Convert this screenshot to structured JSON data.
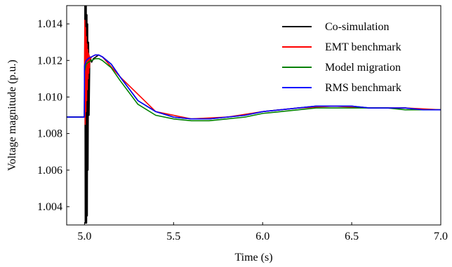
{
  "chart_data": {
    "type": "line",
    "xlabel": "Time (s)",
    "ylabel": "Voltage magnitude (p.u.)",
    "xlim": [
      4.9,
      7.0
    ],
    "ylim": [
      1.003,
      1.015
    ],
    "xticks": [
      "5.0",
      "5.5",
      "6.0",
      "6.5",
      "7.0"
    ],
    "yticks": [
      "1.004",
      "1.006",
      "1.008",
      "1.010",
      "1.012",
      "1.014"
    ],
    "grid": false,
    "legend_position": "top-right",
    "series": [
      {
        "name": "Co-simulation",
        "color": "#000000",
        "x": [
          4.9,
          4.99,
          5.0,
          5.002,
          5.004,
          5.006,
          5.008,
          5.01,
          5.012,
          5.014,
          5.016,
          5.018,
          5.02,
          5.023,
          5.026,
          5.03,
          5.04,
          5.05,
          5.08,
          5.1,
          5.15,
          5.2,
          5.3,
          5.4,
          5.5,
          5.6,
          5.7,
          5.8,
          5.9,
          6.0,
          6.1,
          6.2,
          6.3,
          6.4,
          6.5,
          6.6,
          6.7,
          6.8,
          6.9,
          7.0
        ],
        "values": [
          1.0089,
          1.0089,
          1.0089,
          1.015,
          1.0031,
          1.015,
          1.0031,
          1.015,
          1.0031,
          1.0145,
          1.0035,
          1.014,
          1.006,
          1.013,
          1.009,
          1.0122,
          1.0119,
          1.0121,
          1.0123,
          1.0122,
          1.0118,
          1.0111,
          1.0098,
          1.0092,
          1.0089,
          1.0088,
          1.0088,
          1.0089,
          1.009,
          1.0092,
          1.0093,
          1.0094,
          1.0095,
          1.0095,
          1.0095,
          1.0094,
          1.0094,
          1.0094,
          1.0093,
          1.0093
        ]
      },
      {
        "name": "EMT benchmark",
        "color": "#ff0000",
        "x": [
          4.9,
          4.999,
          5.002,
          5.004,
          5.006,
          5.008,
          5.01,
          5.012,
          5.014,
          5.016,
          5.018,
          5.02,
          5.022,
          5.024,
          5.026,
          5.028,
          5.03,
          5.035,
          5.04,
          5.06,
          5.08,
          5.1,
          5.2,
          5.4,
          5.6,
          5.8,
          6.0,
          6.2,
          6.4,
          6.6,
          6.8,
          7.0
        ],
        "values": [
          1.0089,
          1.0089,
          1.0142,
          1.0085,
          1.0138,
          1.0092,
          1.0133,
          1.0098,
          1.0129,
          1.0104,
          1.0126,
          1.011,
          1.0124,
          1.0113,
          1.0123,
          1.0116,
          1.0122,
          1.0121,
          1.0122,
          1.0123,
          1.0123,
          1.0122,
          1.0111,
          1.0092,
          1.0088,
          1.0089,
          1.0092,
          1.0094,
          1.0095,
          1.0094,
          1.0094,
          1.0093
        ]
      },
      {
        "name": "Model migration",
        "color": "#008000",
        "x": [
          4.9,
          4.999,
          5.0,
          5.01,
          5.02,
          5.04,
          5.06,
          5.08,
          5.1,
          5.15,
          5.2,
          5.3,
          5.4,
          5.5,
          5.6,
          5.7,
          5.8,
          5.9,
          6.0,
          6.1,
          6.2,
          6.3,
          6.4,
          6.5,
          6.6,
          6.7,
          6.8,
          6.9,
          7.0
        ],
        "values": [
          1.0089,
          1.0089,
          1.0114,
          1.0118,
          1.0119,
          1.012,
          1.0121,
          1.0121,
          1.012,
          1.0116,
          1.0109,
          1.0096,
          1.009,
          1.0088,
          1.0087,
          1.0087,
          1.0088,
          1.0089,
          1.0091,
          1.0092,
          1.0093,
          1.0094,
          1.0094,
          1.0094,
          1.0094,
          1.0094,
          1.0093,
          1.0093,
          1.0093
        ]
      },
      {
        "name": "RMS benchmark",
        "color": "#0000ff",
        "x": [
          4.9,
          4.999,
          5.0,
          5.01,
          5.02,
          5.04,
          5.06,
          5.08,
          5.1,
          5.15,
          5.2,
          5.3,
          5.4,
          5.5,
          5.6,
          5.7,
          5.8,
          5.9,
          6.0,
          6.1,
          6.2,
          6.3,
          6.4,
          6.5,
          6.6,
          6.7,
          6.8,
          6.9,
          7.0
        ],
        "values": [
          1.0089,
          1.0089,
          1.0117,
          1.012,
          1.0121,
          1.0122,
          1.0123,
          1.0123,
          1.0122,
          1.0118,
          1.0111,
          1.0098,
          1.0092,
          1.0089,
          1.0088,
          1.0088,
          1.0089,
          1.009,
          1.0092,
          1.0093,
          1.0094,
          1.0095,
          1.0095,
          1.0095,
          1.0094,
          1.0094,
          1.0094,
          1.0093,
          1.0093
        ]
      }
    ]
  }
}
